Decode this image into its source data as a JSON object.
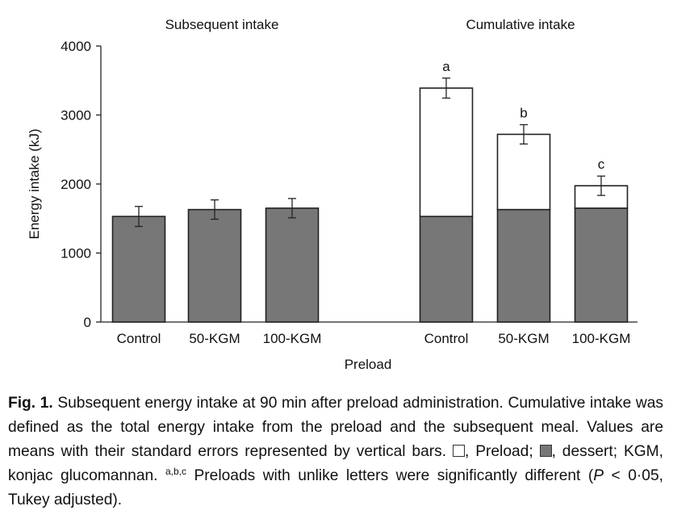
{
  "chart_data": {
    "type": "bar",
    "ylabel": "Energy intake (kJ)",
    "xlabel": "Preload",
    "ylim": [
      0,
      4000
    ],
    "yticks": [
      "0",
      "1000",
      "2000",
      "3000",
      "4000"
    ],
    "panels": [
      {
        "title": "Subsequent intake",
        "categories": [
          "Control",
          "50-KGM",
          "100-KGM"
        ],
        "series": [
          {
            "name": "dessert",
            "color": "#777777",
            "values": [
              1530,
              1630,
              1650
            ]
          }
        ],
        "error": [
          145,
          140,
          140
        ],
        "labels": []
      },
      {
        "title": "Cumulative intake",
        "categories": [
          "Control",
          "50-KGM",
          "100-KGM"
        ],
        "series": [
          {
            "name": "dessert",
            "color": "#777777",
            "values": [
              1530,
              1630,
              1650
            ]
          },
          {
            "name": "Preload",
            "color": "#ffffff",
            "values": [
              1860,
              1090,
              325
            ]
          }
        ],
        "error": [
          145,
          140,
          140
        ],
        "labels": [
          "a",
          "b",
          "c"
        ]
      }
    ]
  },
  "caption": {
    "fig_label": "Fig. 1.",
    "sentence1": "Subsequent energy intake at 90 min after preload administration.",
    "sentence2": "Cumulative intake was defined as the total energy intake from the preload and the subsequent meal. Values are means with their standard errors represented by vertical bars.",
    "preload_text": ", Preload;",
    "dessert_text": ", dessert; KGM, konjac glucomannan.",
    "sup_letters": "a,b,c",
    "last_a": "Preloads with unlike letters were significantly different (",
    "p_symbol": "P",
    "last_b": " < 0·05, Tukey adjusted)."
  }
}
